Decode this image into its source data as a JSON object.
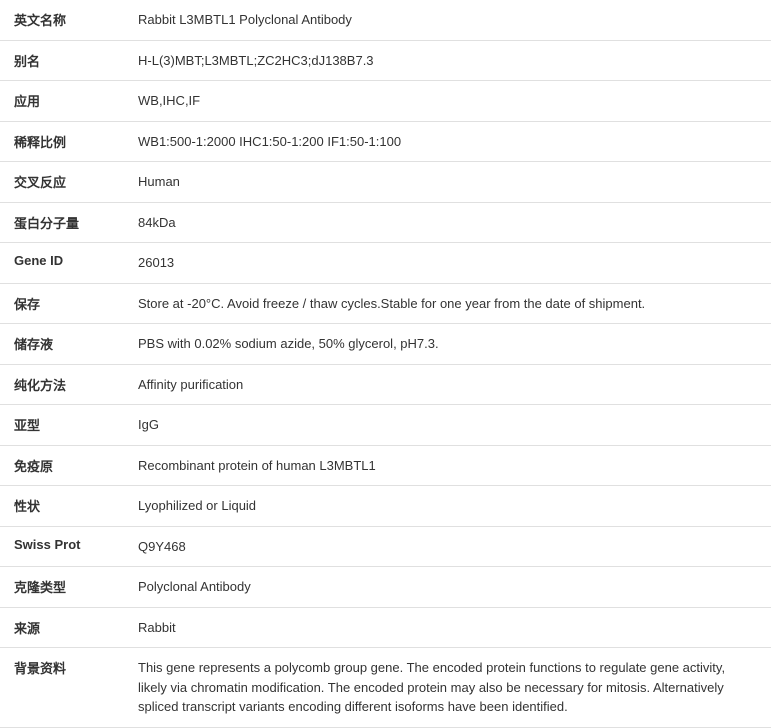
{
  "table": {
    "rows": [
      {
        "label": "英文名称",
        "value": "Rabbit L3MBTL1 Polyclonal Antibody"
      },
      {
        "label": "别名",
        "value": "H-L(3)MBT;L3MBTL;ZC2HC3;dJ138B7.3"
      },
      {
        "label": "应用",
        "value": "WB,IHC,IF"
      },
      {
        "label": "稀释比例",
        "value": "WB1:500-1:2000 IHC1:50-1:200 IF1:50-1:100"
      },
      {
        "label": "交叉反应",
        "value": "Human"
      },
      {
        "label": "蛋白分子量",
        "value": "84kDa"
      },
      {
        "label": "Gene ID",
        "value": "26013"
      },
      {
        "label": "保存",
        "value": "Store at -20°C. Avoid freeze / thaw cycles.Stable for one year from the date of shipment."
      },
      {
        "label": "储存液",
        "value": "PBS with 0.02% sodium azide, 50% glycerol, pH7.3."
      },
      {
        "label": "纯化方法",
        "value": "Affinity purification"
      },
      {
        "label": "亚型",
        "value": "IgG"
      },
      {
        "label": "免疫原",
        "value": "Recombinant protein of human L3MBTL1"
      },
      {
        "label": "性状",
        "value": "Lyophilized or Liquid"
      },
      {
        "label": "Swiss Prot",
        "value": "Q9Y468"
      },
      {
        "label": "克隆类型",
        "value": "Polyclonal Antibody"
      },
      {
        "label": "来源",
        "value": "Rabbit"
      },
      {
        "label": "背景资料",
        "value": "This gene represents a polycomb group gene. The encoded protein functions to regulate gene activity, likely via chromatin modification. The encoded protein may also be necessary for mitosis. Alternatively spliced transcript variants encoding different isoforms have been identified."
      }
    ],
    "label_width": "130px",
    "border_color": "#e0e0e0",
    "text_color": "#333333",
    "background_color": "#ffffff",
    "font_size": 13
  }
}
